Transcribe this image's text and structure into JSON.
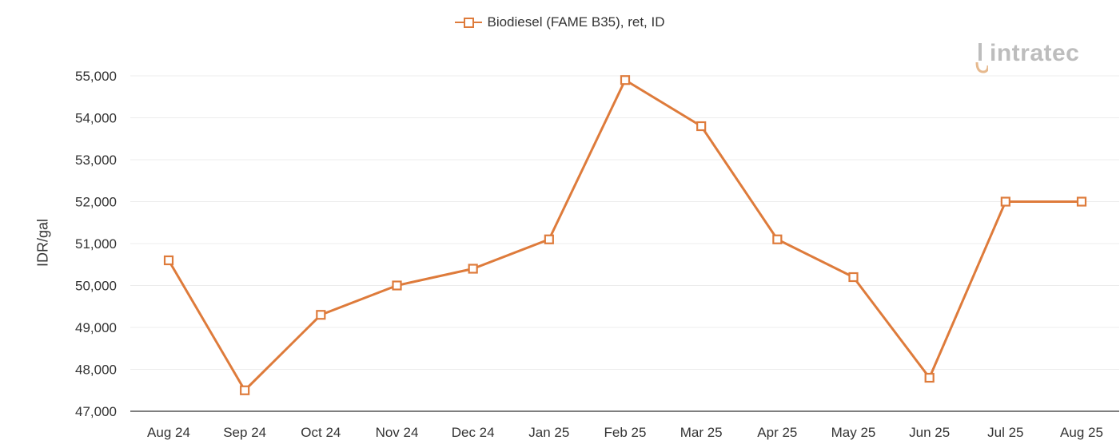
{
  "legend": {
    "label": "Biodiesel (FAME B35), ret, ID"
  },
  "watermark": {
    "text": "intratec"
  },
  "colors": {
    "series": "#DE7B3B",
    "grid": "#ececec",
    "axis": "#555555",
    "watermark": "#bdbdbd",
    "watermark_accent": "#e6b98e"
  },
  "chart_data": {
    "type": "line",
    "title": "",
    "xlabel": "",
    "ylabel": "IDR/gal",
    "categories": [
      "Aug 24",
      "Sep 24",
      "Oct 24",
      "Nov 24",
      "Dec 24",
      "Jan 25",
      "Feb 25",
      "Mar 25",
      "Apr 25",
      "May 25",
      "Jun 25",
      "Jul 25",
      "Aug 25"
    ],
    "series": [
      {
        "name": "Biodiesel (FAME B35), ret, ID",
        "values": [
          50600,
          47500,
          49300,
          50000,
          50400,
          51100,
          54900,
          53800,
          51100,
          50200,
          47800,
          52000,
          52000
        ]
      }
    ],
    "ylim": [
      47000,
      55000
    ],
    "yticks": [
      "47,000",
      "48,000",
      "49,000",
      "50,000",
      "51,000",
      "52,000",
      "53,000",
      "54,000",
      "55,000"
    ],
    "grid": true,
    "legend_position": "top-center",
    "marker": "hollow-square"
  }
}
